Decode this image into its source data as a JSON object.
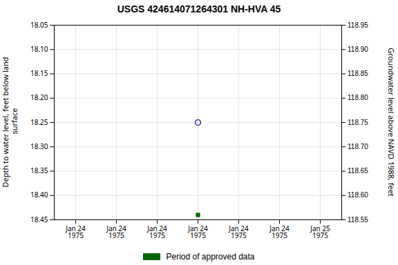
{
  "chart_data": {
    "type": "scatter",
    "title": "USGS 424614071264301 NH-HVA   45",
    "y_label": "Depth to water level, feet below land\n surface",
    "y2_label": "Groundwater level above NAVD 1988, feet",
    "categories": [
      "Jan 24\n1975",
      "Jan 24\n1975",
      "Jan 24\n1975",
      "Jan 24\n1975",
      "Jan 24\n1975",
      "Jan 24\n1975",
      "Jan 25\n1975"
    ],
    "series": [
      {
        "color": "#0000cc",
        "marker": "open_circle",
        "values": [
          null,
          null,
          null,
          18.25,
          null,
          null,
          null
        ]
      },
      {
        "name": "Period of approved data",
        "color": "#006600",
        "marker": "square",
        "values": [
          null,
          null,
          null,
          18.44,
          null,
          null,
          null
        ]
      }
    ],
    "ylim": [
      18.45,
      18.05
    ],
    "yticks": [
      18.05,
      {
        "value": 18.1,
        "label": "18.10"
      },
      18.15,
      {
        "value": 18.2,
        "label": "18.20"
      },
      18.25,
      {
        "value": 18.3,
        "label": "18.30"
      },
      18.35,
      {
        "value": 18.4,
        "label": "18.40"
      },
      18.45
    ],
    "y2lim": [
      118.55,
      118.95
    ],
    "y2ticks": [
      118.95,
      {
        "value": 118.9,
        "label": "118.90"
      },
      118.85,
      {
        "value": 118.8,
        "label": "118.80"
      },
      118.75,
      {
        "value": 118.7,
        "label": "118.70"
      },
      118.65,
      {
        "value": 118.6,
        "label": "118.60"
      },
      118.55
    ],
    "grid": true,
    "legend": "bottom"
  }
}
